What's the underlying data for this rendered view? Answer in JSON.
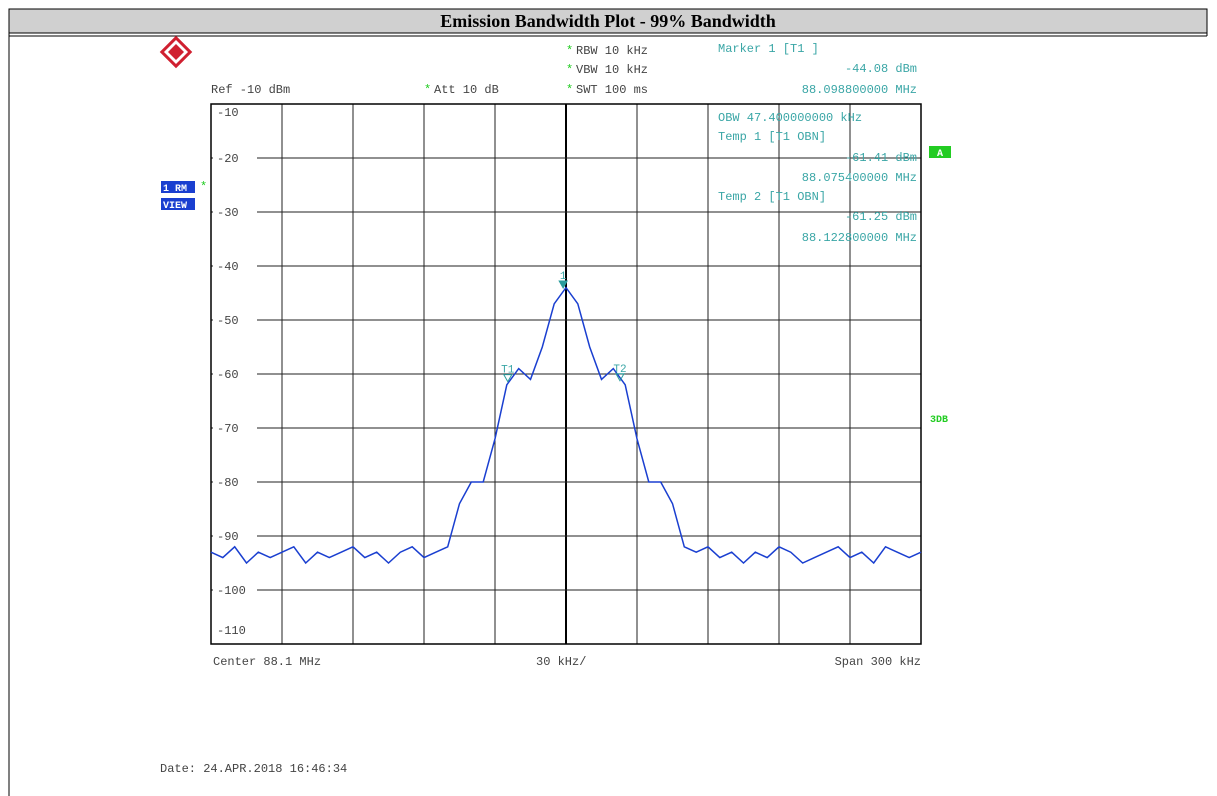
{
  "page_title": "Emission Bandwidth Plot - 99% Bandwidth",
  "setting_flag": "*",
  "header": {
    "rbw": "RBW 10 kHz",
    "vbw": "VBW 10 kHz",
    "swt": "SWT 100 ms",
    "ref": "Ref -10 dBm",
    "att": "Att 10 dB"
  },
  "marker_readout": [
    "Marker 1 [T1 ]",
    "-44.08 dBm",
    "88.098800000 MHz"
  ],
  "obw_readout": [
    "OBW 47.400000000 kHz",
    "Temp 1 [T1 OBN]",
    "-61.41 dBm",
    "88.075400000 MHz",
    "Temp 2 [T1 OBN]",
    "-61.25 dBm",
    "88.122800000 MHz"
  ],
  "side_labels": {
    "trace": "1 RM",
    "view": "VIEW",
    "a": "A",
    "db": "3DB"
  },
  "footer": {
    "center": "Center 88.1 MHz",
    "div": "30 kHz/",
    "span": "Span 300 kHz",
    "date": "Date: 24.APR.2018 16:46:34"
  },
  "chart_data": {
    "type": "line",
    "x": [
      87.95,
      87.955,
      87.96,
      87.965,
      87.97,
      87.975,
      87.98,
      87.985,
      87.99,
      87.995,
      88.0,
      88.005,
      88.01,
      88.015,
      88.02,
      88.025,
      88.03,
      88.035,
      88.04,
      88.045,
      88.05,
      88.055,
      88.06,
      88.065,
      88.07,
      88.075,
      88.08,
      88.085,
      88.09,
      88.095,
      88.1,
      88.105,
      88.11,
      88.115,
      88.12,
      88.125,
      88.13,
      88.135,
      88.14,
      88.145,
      88.15,
      88.155,
      88.16,
      88.165,
      88.17,
      88.175,
      88.18,
      88.185,
      88.19,
      88.195,
      88.2,
      88.205,
      88.21,
      88.215,
      88.22,
      88.225,
      88.23,
      88.235,
      88.24,
      88.245,
      88.25
    ],
    "values": [
      -93,
      -94,
      -92,
      -95,
      -93,
      -94,
      -93,
      -92,
      -95,
      -93,
      -94,
      -93,
      -92,
      -94,
      -93,
      -95,
      -93,
      -92,
      -94,
      -93,
      -92,
      -84,
      -80,
      -80,
      -72,
      -62,
      -59,
      -61,
      -55,
      -47,
      -44,
      -47,
      -55,
      -61,
      -59,
      -62,
      -72,
      -80,
      -80,
      -84,
      -92,
      -93,
      -92,
      -94,
      -93,
      -95,
      -93,
      -94,
      -92,
      -93,
      -95,
      -94,
      -93,
      -92,
      -94,
      -93,
      -95,
      -92,
      -93,
      -94,
      -93
    ],
    "color": "#1a3fd0",
    "xlim": [
      87.95,
      88.25
    ],
    "ylim": [
      -110,
      -10
    ],
    "yticks": [
      -10,
      -20,
      -30,
      -40,
      -50,
      -60,
      -70,
      -80,
      -90,
      -100,
      -110
    ],
    "grid": true,
    "markers": [
      {
        "label": "1",
        "x": 88.0988,
        "y": -44.08
      },
      {
        "label": "T1",
        "x": 88.0754,
        "y": -61.41
      },
      {
        "label": "T2",
        "x": 88.1228,
        "y": -61.25
      }
    ]
  }
}
